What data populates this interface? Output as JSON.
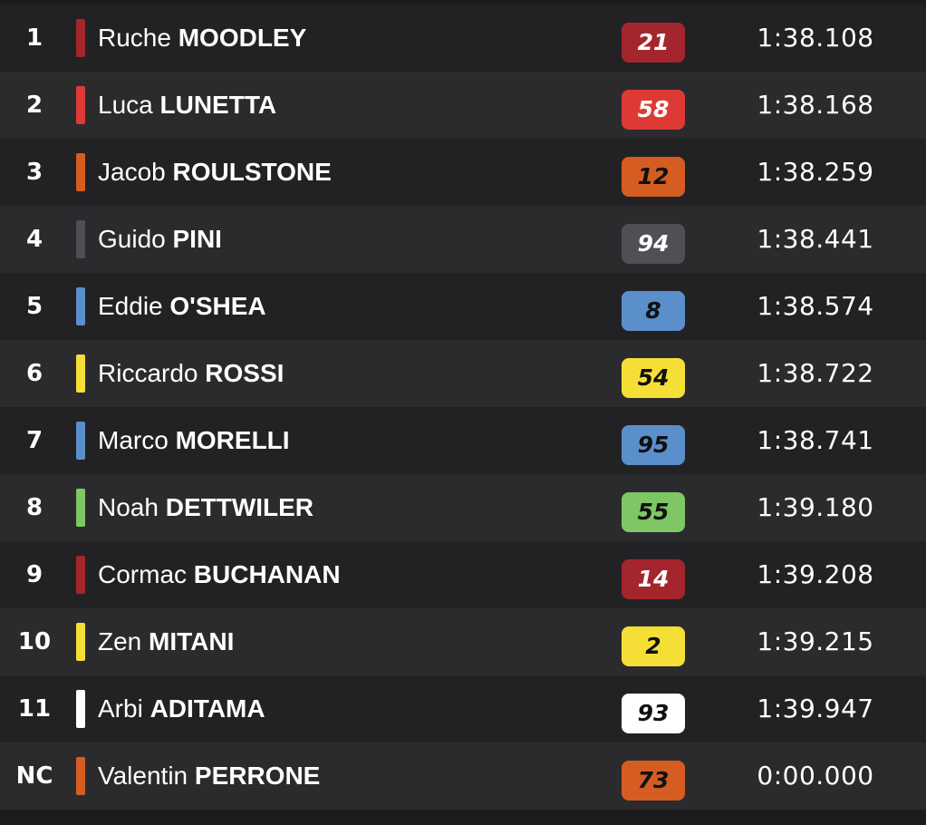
{
  "results": [
    {
      "position": "1",
      "first_name": "Ruche",
      "last_name": "MOODLEY",
      "number": "21",
      "time": "1:38.108",
      "team_color": "#a4262c",
      "badge_text_color": "#ffffff"
    },
    {
      "position": "2",
      "first_name": "Luca",
      "last_name": "LUNETTA",
      "number": "58",
      "time": "1:38.168",
      "team_color": "#dd3a36",
      "badge_text_color": "#ffffff"
    },
    {
      "position": "3",
      "first_name": "Jacob",
      "last_name": "ROULSTONE",
      "number": "12",
      "time": "1:38.259",
      "team_color": "#d55d22",
      "badge_text_color": "#111111"
    },
    {
      "position": "4",
      "first_name": "Guido",
      "last_name": "PINI",
      "number": "94",
      "time": "1:38.441",
      "team_color": "#4f4f54",
      "badge_text_color": "#ffffff"
    },
    {
      "position": "5",
      "first_name": "Eddie",
      "last_name": "O'SHEA",
      "number": "8",
      "time": "1:38.574",
      "team_color": "#5b8fcb",
      "badge_text_color": "#111111"
    },
    {
      "position": "6",
      "first_name": "Riccardo",
      "last_name": "ROSSI",
      "number": "54",
      "time": "1:38.722",
      "team_color": "#f5df37",
      "badge_text_color": "#111111"
    },
    {
      "position": "7",
      "first_name": "Marco",
      "last_name": "MORELLI",
      "number": "95",
      "time": "1:38.741",
      "team_color": "#5b8fcb",
      "badge_text_color": "#111111"
    },
    {
      "position": "8",
      "first_name": "Noah",
      "last_name": "DETTWILER",
      "number": "55",
      "time": "1:39.180",
      "team_color": "#7fc764",
      "badge_text_color": "#111111"
    },
    {
      "position": "9",
      "first_name": "Cormac",
      "last_name": "BUCHANAN",
      "number": "14",
      "time": "1:39.208",
      "team_color": "#a4262c",
      "badge_text_color": "#ffffff"
    },
    {
      "position": "10",
      "first_name": "Zen",
      "last_name": "MITANI",
      "number": "2",
      "time": "1:39.215",
      "team_color": "#f5df37",
      "badge_text_color": "#111111"
    },
    {
      "position": "11",
      "first_name": "Arbi",
      "last_name": "ADITAMA",
      "number": "93",
      "time": "1:39.947",
      "team_color": "#ffffff",
      "badge_text_color": "#111111"
    },
    {
      "position": "NC",
      "first_name": "Valentin",
      "last_name": "PERRONE",
      "number": "73",
      "time": "0:00.000",
      "team_color": "#d55d22",
      "badge_text_color": "#111111"
    }
  ]
}
